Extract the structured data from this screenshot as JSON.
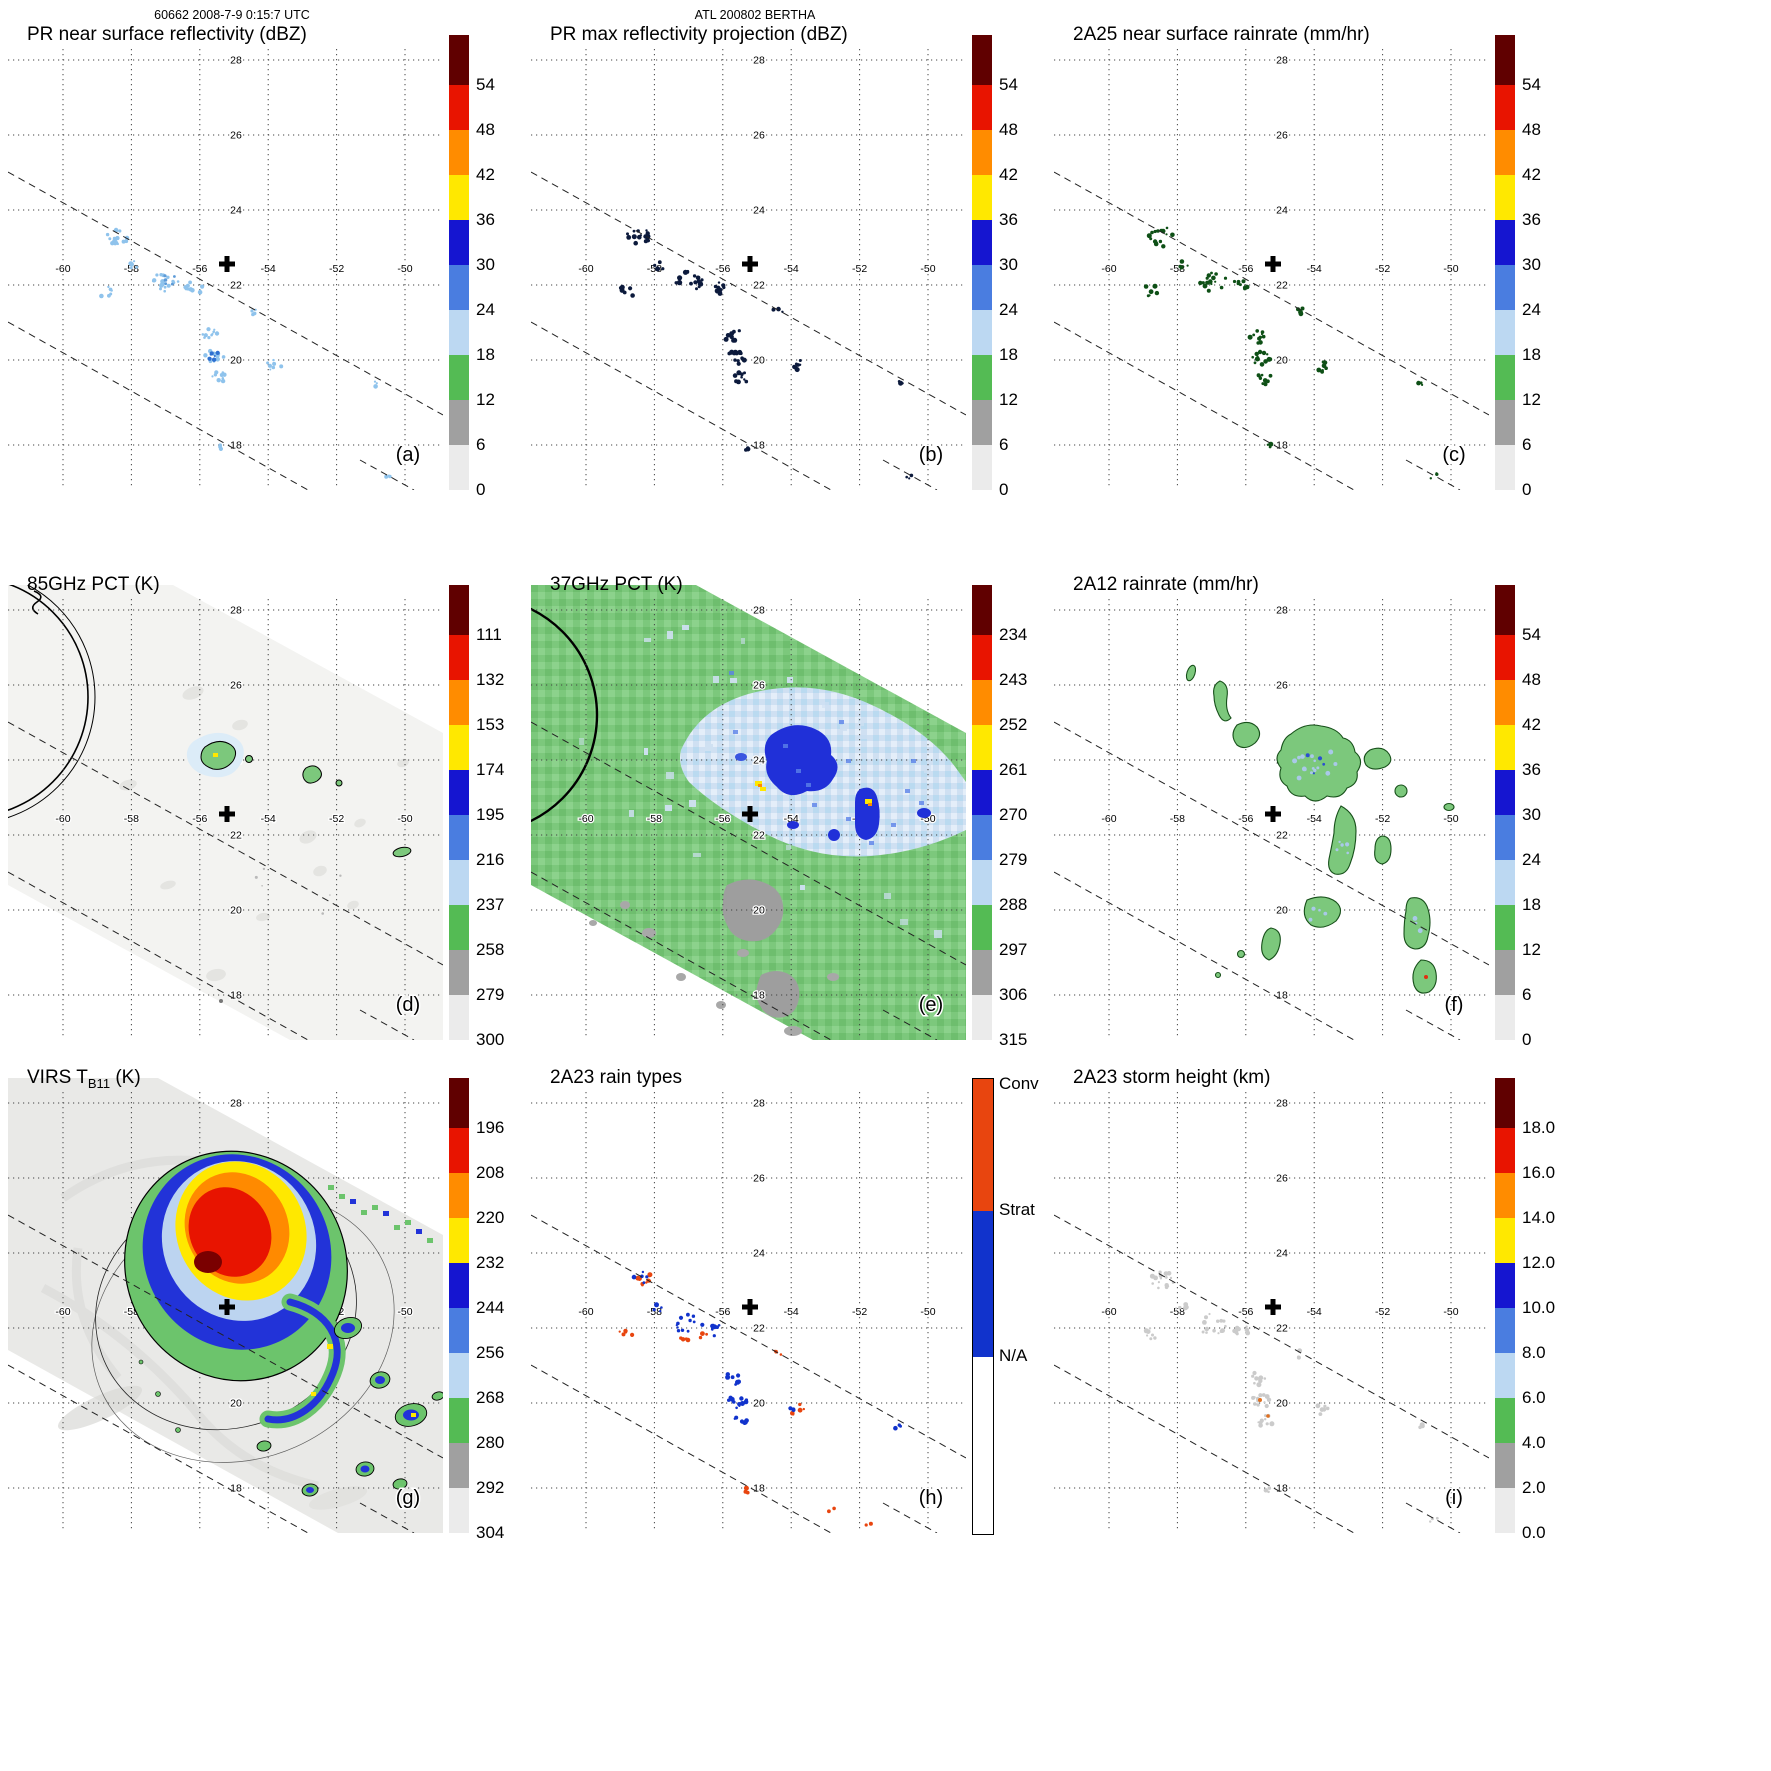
{
  "header": {
    "left": "60662 2008-7-9 0:15:7 UTC",
    "center": "ATL 200802 BERTHA"
  },
  "grid": {
    "lat_labels": [
      "28",
      "26",
      "24",
      "22",
      "20",
      "18"
    ],
    "lon_labels": [
      "-60",
      "-58",
      "-56",
      "-54",
      "-52",
      "-50"
    ]
  },
  "colorbar_colors": [
    "#600000",
    "#e81400",
    "#ff8c00",
    "#ffe800",
    "#1515d0",
    "#4a7de0",
    "#bcd8f2",
    "#54bb54",
    "#a0a0a0",
    "#ebebeb"
  ],
  "raintype_colors": {
    "conv": "#e8450f",
    "strat": "#1133cc",
    "na": "#ffffff"
  },
  "panels": [
    {
      "id": "a",
      "title": "PR near surface reflectivity (dBZ)",
      "letter": "(a)",
      "colorbar": "dbz"
    },
    {
      "id": "b",
      "title": "PR max reflectivity projection (dBZ)",
      "letter": "(b)",
      "colorbar": "dbz"
    },
    {
      "id": "c",
      "title": "2A25 near surface rainrate (mm/hr)",
      "letter": "(c)",
      "colorbar": "rain"
    },
    {
      "id": "d",
      "title": "85GHz PCT (K)",
      "letter": "(d)",
      "colorbar": "pct85"
    },
    {
      "id": "e",
      "title": "37GHz PCT (K)",
      "letter": "(e)",
      "colorbar": "pct37"
    },
    {
      "id": "f",
      "title": "2A12 rainrate (mm/hr)",
      "letter": "(f)",
      "colorbar": "rain"
    },
    {
      "id": "g",
      "title": "VIRS T",
      "title_sub": "B11",
      "title_suffix": " (K)",
      "letter": "(g)",
      "colorbar": "virs"
    },
    {
      "id": "h",
      "title": "2A23 rain types",
      "letter": "(h)",
      "colorbar": "raintype"
    },
    {
      "id": "i",
      "title": "2A23 storm height (km)",
      "letter": "(i)",
      "colorbar": "height"
    }
  ],
  "colorbars": {
    "dbz": {
      "type": "scalar",
      "labels": [
        "54",
        "48",
        "42",
        "36",
        "30",
        "24",
        "18",
        "12",
        "6",
        "0"
      ]
    },
    "rain": {
      "type": "scalar",
      "labels": [
        "54",
        "48",
        "42",
        "36",
        "30",
        "24",
        "18",
        "12",
        "6",
        "0"
      ]
    },
    "pct85": {
      "type": "scalar",
      "labels": [
        "111",
        "132",
        "153",
        "174",
        "195",
        "216",
        "237",
        "258",
        "279",
        "300"
      ]
    },
    "pct37": {
      "type": "scalar",
      "labels": [
        "234",
        "243",
        "252",
        "261",
        "270",
        "279",
        "288",
        "297",
        "306",
        "315"
      ]
    },
    "virs": {
      "type": "scalar",
      "labels": [
        "196",
        "208",
        "220",
        "232",
        "244",
        "256",
        "268",
        "280",
        "292",
        "304"
      ]
    },
    "height": {
      "type": "scalar",
      "labels": [
        "18.0",
        "16.0",
        "14.0",
        "12.0",
        "10.0",
        "8.0",
        "6.0",
        "4.0",
        "2.0",
        "0.0"
      ]
    },
    "raintype": {
      "type": "categorical",
      "labels": [
        "Conv",
        "Strat",
        "N/A"
      ]
    }
  },
  "annotations": {
    "storm_center": {
      "lon": -55.2,
      "lat": 22.6
    }
  },
  "chart_data": [
    {
      "type": "heatmap",
      "panel": "a",
      "title": "PR near surface reflectivity (dBZ)",
      "units": "dBZ",
      "colorbar_ticks": [
        54,
        48,
        42,
        36,
        30,
        24,
        18,
        12,
        6,
        0
      ],
      "lon_ticks": [
        -60,
        -58,
        -56,
        -54,
        -52,
        -50
      ],
      "lat_ticks": [
        28,
        26,
        24,
        22,
        20,
        18
      ],
      "annotations": [
        "storm center cross at lon -55.2 lat 22.6",
        "dashed swath edge lines"
      ]
    },
    {
      "type": "heatmap",
      "panel": "b",
      "title": "PR max reflectivity projection (dBZ)",
      "units": "dBZ",
      "colorbar_ticks": [
        54,
        48,
        42,
        36,
        30,
        24,
        18,
        12,
        6,
        0
      ],
      "lon_ticks": [
        -60,
        -58,
        -56,
        -54,
        -52,
        -50
      ],
      "lat_ticks": [
        28,
        26,
        24,
        22,
        20,
        18
      ]
    },
    {
      "type": "heatmap",
      "panel": "c",
      "title": "2A25 near surface rainrate (mm/hr)",
      "units": "mm/hr",
      "colorbar_ticks": [
        54,
        48,
        42,
        36,
        30,
        24,
        18,
        12,
        6,
        0
      ],
      "lon_ticks": [
        -60,
        -58,
        -56,
        -54,
        -52,
        -50
      ],
      "lat_ticks": [
        28,
        26,
        24,
        22,
        20,
        18
      ]
    },
    {
      "type": "heatmap",
      "panel": "d",
      "title": "85GHz PCT (K)",
      "units": "K",
      "colorbar_ticks": [
        111,
        132,
        153,
        174,
        195,
        216,
        237,
        258,
        279,
        300
      ],
      "lon_ticks": [
        -60,
        -58,
        -56,
        -54,
        -52,
        -50
      ],
      "lat_ticks": [
        28,
        26,
        24,
        22,
        20,
        18
      ]
    },
    {
      "type": "heatmap",
      "panel": "e",
      "title": "37GHz PCT (K)",
      "units": "K",
      "colorbar_ticks": [
        234,
        243,
        252,
        261,
        270,
        279,
        288,
        297,
        306,
        315
      ],
      "lon_ticks": [
        -60,
        -58,
        -56,
        -54,
        -52,
        -50
      ],
      "lat_ticks": [
        28,
        26,
        24,
        22,
        20,
        18
      ]
    },
    {
      "type": "heatmap",
      "panel": "f",
      "title": "2A12 rainrate (mm/hr)",
      "units": "mm/hr",
      "colorbar_ticks": [
        54,
        48,
        42,
        36,
        30,
        24,
        18,
        12,
        6,
        0
      ],
      "lon_ticks": [
        -60,
        -58,
        -56,
        -54,
        -52,
        -50
      ],
      "lat_ticks": [
        28,
        26,
        24,
        22,
        20,
        18
      ]
    },
    {
      "type": "heatmap",
      "panel": "g",
      "title": "VIRS TB11 (K)",
      "units": "K",
      "colorbar_ticks": [
        196,
        208,
        220,
        232,
        244,
        256,
        268,
        280,
        292,
        304
      ],
      "lon_ticks": [
        -60,
        -58,
        -56,
        -54,
        -52,
        -50
      ],
      "lat_ticks": [
        28,
        26,
        24,
        22,
        20,
        18
      ]
    },
    {
      "type": "heatmap",
      "panel": "h",
      "title": "2A23 rain types",
      "units": "category",
      "categories": [
        "Conv",
        "Strat",
        "N/A"
      ],
      "lon_ticks": [
        -60,
        -58,
        -56,
        -54,
        -52,
        -50
      ],
      "lat_ticks": [
        28,
        26,
        24,
        22,
        20,
        18
      ]
    },
    {
      "type": "heatmap",
      "panel": "i",
      "title": "2A23 storm height (km)",
      "units": "km",
      "colorbar_ticks": [
        18.0,
        16.0,
        14.0,
        12.0,
        10.0,
        8.0,
        6.0,
        4.0,
        2.0,
        0.0
      ],
      "lon_ticks": [
        -60,
        -58,
        -56,
        -54,
        -52,
        -50
      ],
      "lat_ticks": [
        28,
        26,
        24,
        22,
        20,
        18
      ]
    }
  ]
}
